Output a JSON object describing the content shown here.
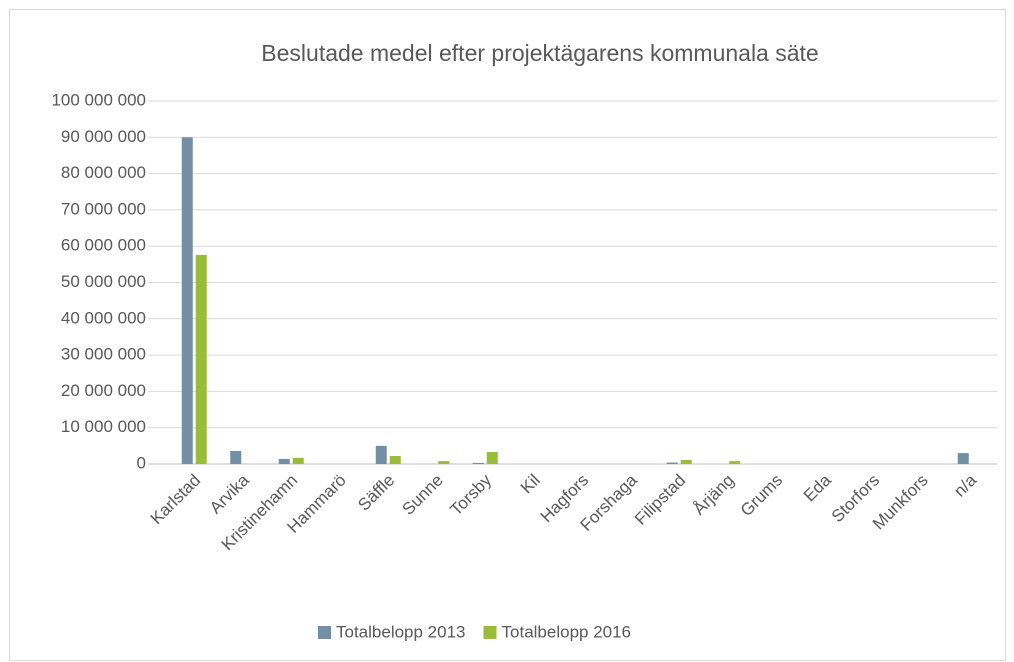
{
  "chart_data": {
    "type": "bar",
    "title": "Beslutade medel efter projektägarens kommunala säte",
    "categories": [
      "Karlstad",
      "Arvika",
      "Kristinehamn",
      "Hammarö",
      "Säffle",
      "Sunne",
      "Torsby",
      "Kil",
      "Hagfors",
      "Forshaga",
      "Filipstad",
      "Årjäng",
      "Grums",
      "Eda",
      "Storfors",
      "Munkfors",
      "n/a"
    ],
    "series": [
      {
        "name": "Totalbelopp 2013",
        "color": "#748fa3",
        "values": [
          90000000,
          3600000,
          1400000,
          0,
          5000000,
          0,
          300000,
          0,
          0,
          0,
          400000,
          0,
          0,
          0,
          0,
          0,
          3000000
        ]
      },
      {
        "name": "Totalbelopp 2016",
        "color": "#9bbb3b",
        "values": [
          57600000,
          0,
          1700000,
          0,
          2200000,
          800000,
          3300000,
          0,
          0,
          0,
          1100000,
          800000,
          0,
          0,
          0,
          0,
          0
        ]
      }
    ],
    "ylim": [
      0,
      100000000
    ],
    "yticks": [
      0,
      {
        "value": 10000000,
        "label": "10 000 000"
      },
      {
        "value": 20000000,
        "label": "20 000 000"
      },
      {
        "value": 30000000,
        "label": "30 000 000"
      },
      {
        "value": 40000000,
        "label": "40 000 000"
      },
      {
        "value": 50000000,
        "label": "50 000 000"
      },
      {
        "value": 60000000,
        "label": "60 000 000"
      },
      {
        "value": 70000000,
        "label": "70 000 000"
      },
      {
        "value": 80000000,
        "label": "80 000 000"
      },
      {
        "value": 90000000,
        "label": "90 000 000"
      },
      {
        "value": 100000000,
        "label": "100 000 000"
      }
    ],
    "grid": true,
    "legend": "bottom"
  }
}
